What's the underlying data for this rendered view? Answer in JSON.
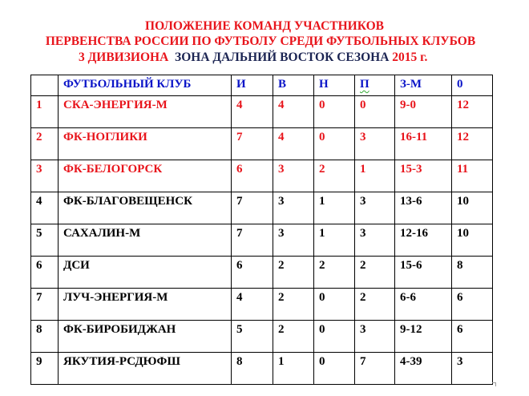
{
  "title": {
    "line1": "ПОЛОЖЕНИЕ КОМАНД УЧАСТНИКОВ",
    "line2": "ПЕРВЕНСТВА  РОССИИ  ПО ФУТБОЛУ  СРЕДИ  ФУТБОЛЬНЫХ КЛУБОВ",
    "line3_part1": "3 ДИВИЗИОНА",
    "line3_part2": "ЗОНА ДАЛЬНИЙ  ВОСТОК СЕЗОНА",
    "line3_part3": "2015 г."
  },
  "colors": {
    "title": "#e8141b",
    "title_navy": "#1b2452",
    "header": "#0a14c8",
    "top3": "#e8141b"
  },
  "table": {
    "headers": [
      "",
      "ФУТБОЛЬНЫЙ КЛУБ",
      "И",
      "В",
      "Н",
      "П",
      "З-М",
      "0"
    ],
    "rows": [
      [
        "1",
        "СКА-ЭНЕРГИЯ-М",
        "4",
        "4",
        "0",
        "0",
        "9-0",
        "12"
      ],
      [
        "2",
        "ФК-НОГЛИКИ",
        "7",
        "4",
        "0",
        "3",
        "16-11",
        "12"
      ],
      [
        "3",
        "ФК-БЕЛОГОРСК",
        "6",
        "3",
        "2",
        "1",
        "15-3",
        "11"
      ],
      [
        "4",
        "ФК-БЛАГОВЕЩЕНСК",
        "7",
        "3",
        "1",
        "3",
        "13-6",
        "10"
      ],
      [
        "5",
        "САХАЛИН-М",
        "7",
        "3",
        "1",
        "3",
        "12-16",
        "10"
      ],
      [
        "6",
        "ДСИ",
        "6",
        "2",
        "2",
        "2",
        "15-6",
        "8"
      ],
      [
        "7",
        "ЛУЧ-ЭНЕРГИЯ-М",
        "4",
        "2",
        "0",
        "2",
        "6-6",
        "6"
      ],
      [
        "8",
        "ФК-БИРОБИДЖАН",
        "5",
        "2",
        "0",
        "3",
        "9-12",
        "6"
      ],
      [
        "9",
        "ЯКУТИЯ-РСДЮФШ",
        "8",
        "1",
        "0",
        "7",
        "4-39",
        "3"
      ]
    ]
  }
}
